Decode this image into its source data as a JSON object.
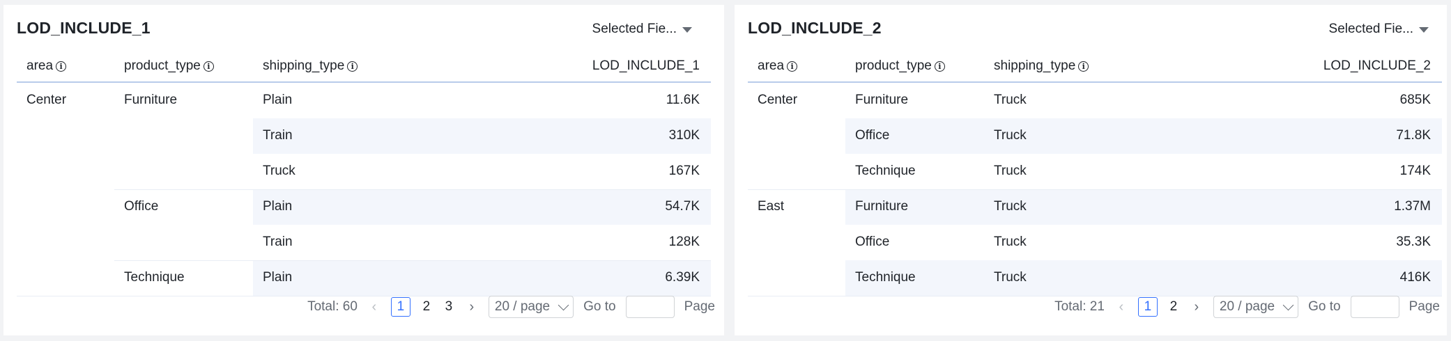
{
  "panels": [
    {
      "title": "LOD_INCLUDE_1",
      "field_select": "Selected Fie...",
      "headers": [
        "area",
        "product_type",
        "shipping_type",
        "LOD_INCLUDE_1"
      ],
      "rows": [
        {
          "area": "Center",
          "product_type": "Furniture",
          "shipping_type": "Plain",
          "value": "11.6K"
        },
        {
          "area": "",
          "product_type": "",
          "shipping_type": "Train",
          "value": "310K"
        },
        {
          "area": "",
          "product_type": "",
          "shipping_type": "Truck",
          "value": "167K"
        },
        {
          "area": "",
          "product_type": "Office",
          "shipping_type": "Plain",
          "value": "54.7K"
        },
        {
          "area": "",
          "product_type": "",
          "shipping_type": "Train",
          "value": "128K"
        },
        {
          "area": "",
          "product_type": "Technique",
          "shipping_type": "Plain",
          "value": "6.39K"
        }
      ],
      "pagination": {
        "total": "Total: 60",
        "pages": [
          "1",
          "2",
          "3"
        ],
        "page_size": "20 / page",
        "goto_label": "Go to",
        "page_label": "Page"
      }
    },
    {
      "title": "LOD_INCLUDE_2",
      "field_select": "Selected Fie...",
      "headers": [
        "area",
        "product_type",
        "shipping_type",
        "LOD_INCLUDE_2"
      ],
      "rows": [
        {
          "area": "Center",
          "product_type": "Furniture",
          "shipping_type": "Truck",
          "value": "685K"
        },
        {
          "area": "",
          "product_type": "Office",
          "shipping_type": "Truck",
          "value": "71.8K"
        },
        {
          "area": "",
          "product_type": "Technique",
          "shipping_type": "Truck",
          "value": "174K"
        },
        {
          "area": "East",
          "product_type": "Furniture",
          "shipping_type": "Truck",
          "value": "1.37M"
        },
        {
          "area": "",
          "product_type": "Office",
          "shipping_type": "Truck",
          "value": "35.3K"
        },
        {
          "area": "",
          "product_type": "Technique",
          "shipping_type": "Truck",
          "value": "416K"
        }
      ],
      "pagination": {
        "total": "Total: 21",
        "pages": [
          "1",
          "2"
        ],
        "page_size": "20 / page",
        "goto_label": "Go to",
        "page_label": "Page"
      }
    }
  ],
  "colors": {
    "accent": "#3370ff",
    "stripe": "#f3f6fc",
    "header_border": "#b8cbea"
  },
  "icons": [
    "info-icon",
    "caret-down-icon",
    "chevron-left-icon",
    "chevron-right-icon",
    "chevron-down-icon"
  ]
}
